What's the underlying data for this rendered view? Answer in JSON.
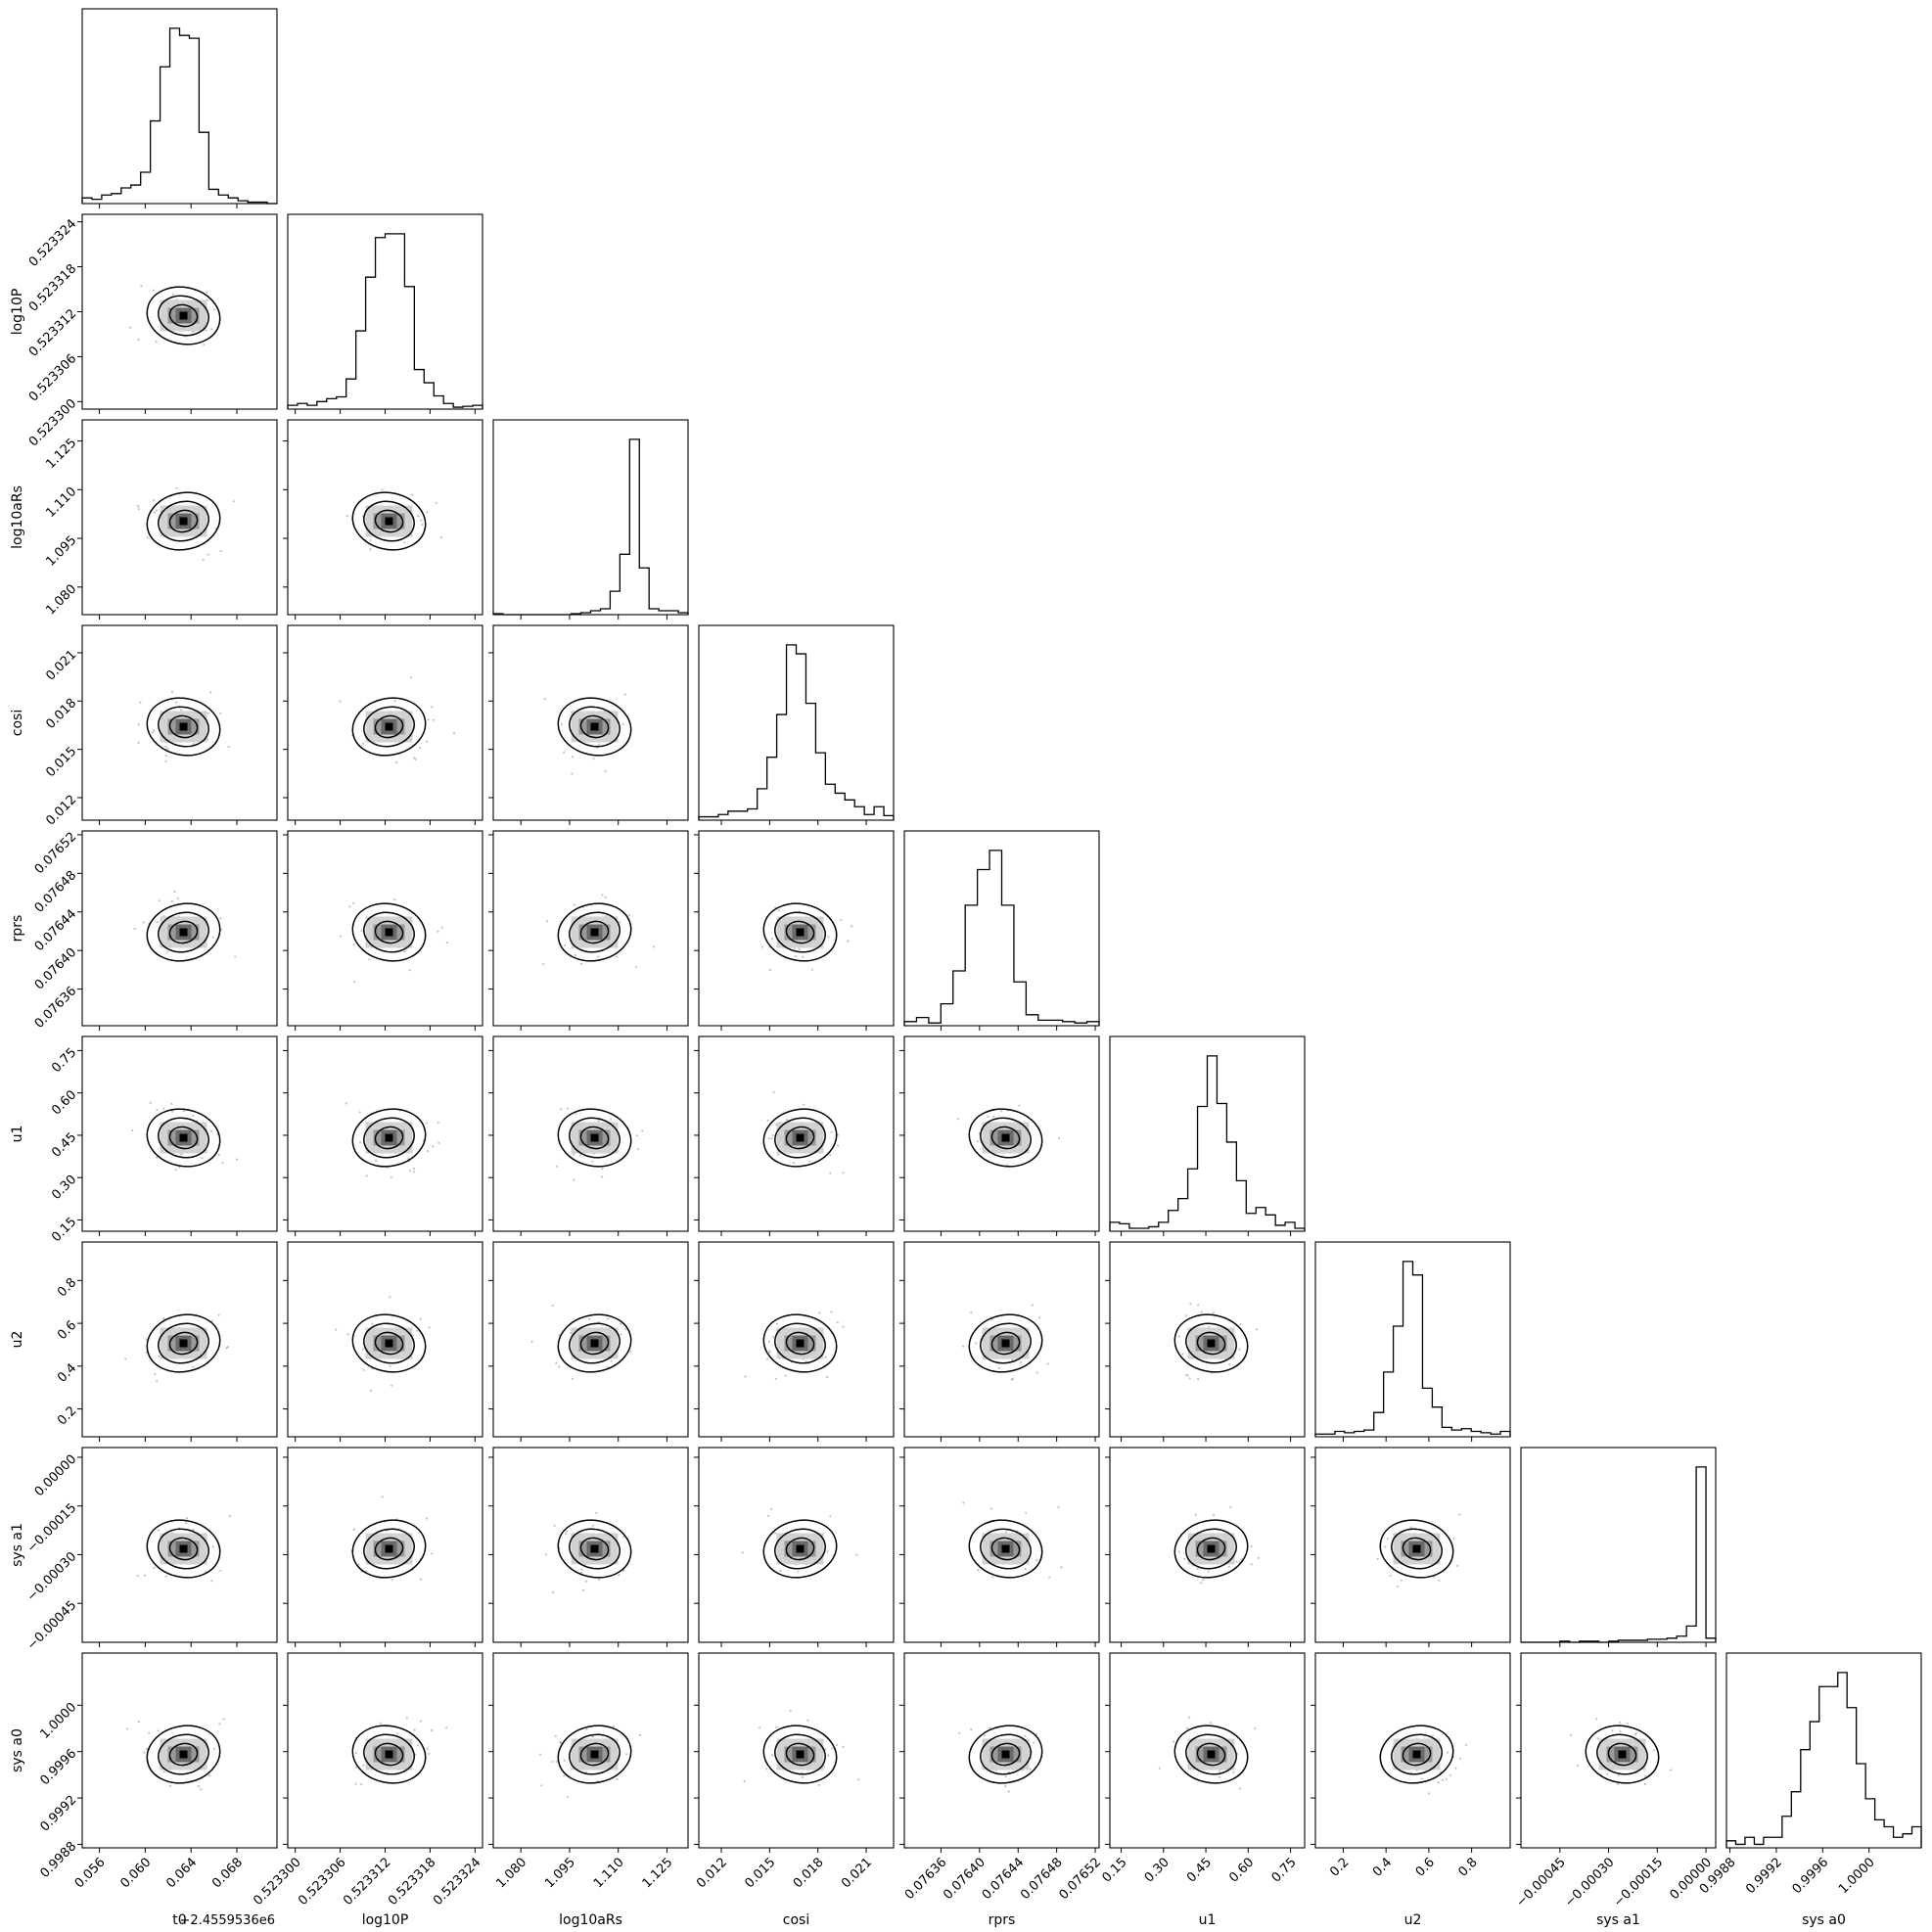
{
  "chart_data": {
    "type": "corner",
    "parameters": [
      {
        "label": "t0",
        "offset_label": "+2.4559536e6",
        "range": [
          0.0545,
          0.0715
        ],
        "ticks": [
          "0.056",
          "0.060",
          "0.064",
          "0.068"
        ],
        "tick_values": [
          0.056,
          0.06,
          0.064,
          0.068
        ],
        "hist": [
          4,
          3,
          6,
          7,
          11,
          13,
          22,
          58,
          96,
          123,
          118,
          116,
          50,
          10,
          6,
          4,
          2,
          1,
          1,
          0
        ]
      },
      {
        "label": "log10P",
        "range": [
          0.523299,
          0.523325
        ],
        "ticks": [
          "0.523300",
          "0.523306",
          "0.523312",
          "0.523318",
          "0.523324"
        ],
        "tick_values": [
          0.5233,
          0.523306,
          0.523312,
          0.523318,
          0.523324
        ],
        "hist": [
          4,
          6,
          4,
          8,
          11,
          13,
          32,
          83,
          140,
          182,
          186,
          186,
          130,
          42,
          28,
          14,
          6,
          2,
          3,
          4
        ]
      },
      {
        "label": "log10aRs",
        "range": [
          1.0715,
          1.1315
        ],
        "ticks": [
          "1.080",
          "1.095",
          "1.110",
          "1.125"
        ],
        "tick_values": [
          1.08,
          1.095,
          1.11,
          1.125
        ],
        "hist": [
          1,
          0,
          0,
          0,
          0,
          0,
          0,
          0,
          1,
          2,
          4,
          6,
          24,
          62,
          180,
          48,
          6,
          4,
          4,
          2
        ]
      },
      {
        "label": "cosi",
        "range": [
          0.0106,
          0.0227
        ],
        "ticks": [
          "0.012",
          "0.015",
          "0.018",
          "0.021"
        ],
        "tick_values": [
          0.012,
          0.015,
          0.018,
          0.021
        ],
        "hist": [
          3,
          3,
          5,
          8,
          8,
          10,
          28,
          56,
          94,
          156,
          148,
          104,
          60,
          32,
          24,
          18,
          12,
          5,
          12,
          4
        ]
      },
      {
        "label": "rprs",
        "range": [
          0.076322,
          0.076524
        ],
        "ticks": [
          "0.07636",
          "0.07640",
          "0.07644",
          "0.07648",
          "0.07652"
        ],
        "tick_values": [
          0.07636,
          0.0764,
          0.07644,
          0.07648,
          0.07652
        ],
        "hist": [
          3,
          6,
          2,
          16,
          40,
          88,
          114,
          128,
          88,
          32,
          8,
          4,
          4,
          3,
          2,
          3
        ]
      },
      {
        "label": "u1",
        "range": [
          0.11,
          0.8
        ],
        "ticks": [
          "0.15",
          "0.30",
          "0.45",
          "0.60",
          "0.75"
        ],
        "tick_values": [
          0.15,
          0.3,
          0.45,
          0.6,
          0.75
        ],
        "hist": [
          6,
          5,
          2,
          2,
          3,
          6,
          14,
          22,
          42,
          84,
          118,
          86,
          60,
          34,
          12,
          16,
          11,
          4,
          6,
          2
        ]
      },
      {
        "label": "u2",
        "range": [
          0.07,
          0.98
        ],
        "ticks": [
          "0.2",
          "0.4",
          "0.6",
          "0.8"
        ],
        "tick_values": [
          0.2,
          0.4,
          0.6,
          0.8
        ],
        "hist": [
          2,
          2,
          4,
          3,
          4,
          5,
          18,
          48,
          82,
          130,
          120,
          36,
          22,
          7,
          5,
          6,
          4,
          3,
          2,
          4
        ]
      },
      {
        "label": "sys a1",
        "range": [
          -0.00057,
          3e-05
        ],
        "ticks": [
          "−0.00045",
          "−0.00030",
          "−0.00015",
          "0.00000"
        ],
        "tick_values": [
          -0.00045,
          -0.0003,
          -0.00015,
          0
        ],
        "hist": [
          0,
          0,
          0,
          0,
          1,
          0,
          1,
          1,
          0,
          1,
          2,
          2,
          2,
          3,
          3,
          4,
          6,
          16,
          172,
          4
        ]
      },
      {
        "label": "sys a0",
        "range": [
          0.99877,
          1.00045
        ],
        "ticks": [
          "0.9988",
          "0.9992",
          "0.9996",
          "1.0000"
        ],
        "tick_values": [
          0.9988,
          0.9992,
          0.9996,
          1.0
        ],
        "hist": [
          2,
          1,
          3,
          1,
          3,
          3,
          9,
          16,
          28,
          36,
          46,
          46,
          50,
          40,
          24,
          14,
          8,
          6,
          3,
          4,
          6
        ]
      }
    ],
    "grid": false
  }
}
